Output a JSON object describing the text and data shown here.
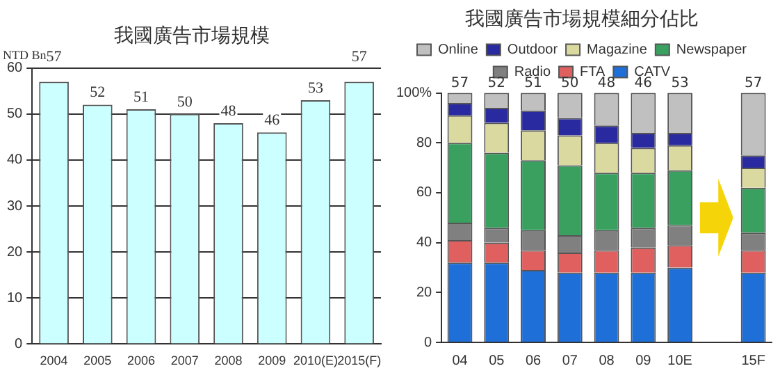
{
  "chart_data": [
    {
      "type": "bar",
      "title": "我國廣告市場規模",
      "ylabel": "NTD Bn",
      "categories": [
        "2004",
        "2005",
        "2006",
        "2007",
        "2008",
        "2009",
        "2010(E)",
        "2015(F)"
      ],
      "values": [
        57,
        52,
        51,
        50,
        48,
        46,
        53,
        57
      ],
      "color": "#ccffff",
      "ylim": [
        0,
        60
      ],
      "yticks": [
        0,
        10,
        20,
        30,
        40,
        50,
        60
      ],
      "grid": "y",
      "legend": false,
      "data_labels": true
    },
    {
      "type": "bar",
      "title": "我國廣告市場規模細分佔比",
      "categories": [
        "04",
        "05",
        "06",
        "07",
        "08",
        "09",
        "10E",
        null,
        "15F"
      ],
      "stacked": true,
      "ylim": [
        0,
        100
      ],
      "yticks": [
        0,
        20,
        40,
        60,
        80,
        {
          "value": 100,
          "label": "100%"
        }
      ],
      "grid": false,
      "legend": "top",
      "annotations": [
        {
          "text": "57",
          "x": "04",
          "y": 100
        },
        {
          "text": "52",
          "x": "05",
          "y": 100
        },
        {
          "text": "51",
          "x": "06",
          "y": 100
        },
        {
          "text": "50",
          "x": "07",
          "y": 100
        },
        {
          "text": "48",
          "x": "08",
          "y": 100
        },
        {
          "text": "46",
          "x": "09",
          "y": 100
        },
        {
          "text": "53",
          "x": "10E",
          "y": 100
        },
        {
          "text": "57",
          "x": "15F",
          "y": 100
        }
      ],
      "series": [
        {
          "name": "CATV",
          "color": "#1f6fd8",
          "values": [
            32,
            32,
            29,
            28,
            28,
            28,
            30,
            null,
            28
          ]
        },
        {
          "name": "FTA",
          "color": "#e06060",
          "values": [
            9,
            8,
            8,
            8,
            9,
            10,
            9,
            null,
            9
          ]
        },
        {
          "name": "Radio",
          "color": "#808080",
          "values": [
            7,
            6,
            8,
            7,
            8,
            8,
            8,
            null,
            7
          ]
        },
        {
          "name": "Newspaper",
          "color": "#3aa060",
          "values": [
            32,
            30,
            28,
            28,
            23,
            22,
            22,
            null,
            18
          ]
        },
        {
          "name": "Magazine",
          "color": "#d9d9a0",
          "values": [
            11,
            12,
            12,
            12,
            12,
            10,
            10,
            null,
            8
          ]
        },
        {
          "name": "Outdoor",
          "color": "#2a2aa0",
          "values": [
            5,
            6,
            8,
            7,
            7,
            6,
            5,
            null,
            5
          ]
        },
        {
          "name": "Online",
          "color": "#c0c0c0",
          "values": [
            4,
            6,
            7,
            10,
            13,
            16,
            16,
            null,
            25
          ]
        }
      ]
    }
  ]
}
